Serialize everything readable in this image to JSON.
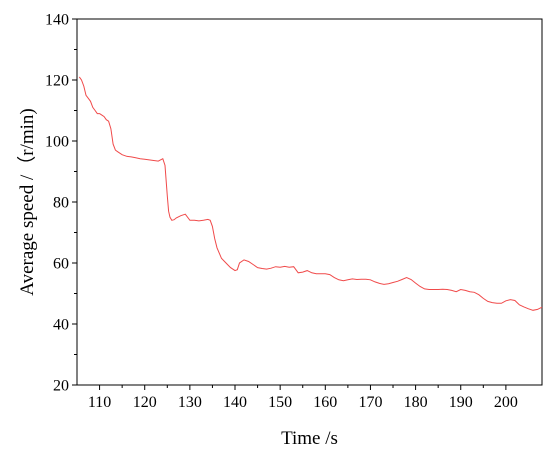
{
  "chart_data": {
    "type": "line",
    "title": "",
    "xlabel": "Time /s",
    "ylabel": "Average speed /（r/min)",
    "xlim": [
      105,
      208
    ],
    "ylim": [
      20,
      140
    ],
    "x_ticks": [
      110,
      120,
      130,
      140,
      150,
      160,
      170,
      180,
      190,
      200
    ],
    "y_ticks": [
      20,
      40,
      60,
      80,
      100,
      120,
      140
    ],
    "grid": false,
    "legend": "none",
    "colors": {
      "line": "#f04a4a",
      "axis": "#000000"
    },
    "series": [
      {
        "x": [
          105.5,
          106,
          106.5,
          107,
          107.5,
          108,
          108.5,
          109,
          109.5,
          110,
          110.5,
          111,
          111.5,
          112,
          112.5,
          113,
          113.5,
          114,
          115,
          116,
          117,
          118,
          119,
          120,
          121,
          122,
          123,
          124,
          124.5,
          125,
          125.3,
          125.6,
          126,
          126.5,
          127,
          128,
          129,
          130,
          131,
          132,
          133,
          134,
          134.5,
          135,
          135.5,
          136,
          137,
          138,
          139,
          140,
          140.5,
          141,
          142,
          143,
          144,
          145,
          146,
          147,
          148,
          149,
          150,
          151,
          152,
          153,
          154,
          155,
          156,
          157,
          158,
          159,
          160,
          161,
          162,
          163,
          164,
          165,
          166,
          167,
          168,
          169,
          170,
          171,
          172,
          173,
          174,
          175,
          176,
          177,
          178,
          179,
          180,
          181,
          182,
          183,
          184,
          185,
          186,
          187,
          188,
          189,
          190,
          191,
          192,
          193,
          194,
          195,
          196,
          197,
          198,
          199,
          200,
          201,
          202,
          203,
          204,
          205,
          206,
          207,
          208
        ],
        "values": [
          121,
          120,
          118,
          115,
          114,
          113,
          111,
          110,
          109,
          109,
          108.5,
          108,
          107,
          106.5,
          104,
          99,
          97,
          96.5,
          95.5,
          95,
          94.8,
          94.5,
          94.2,
          94,
          93.8,
          93.6,
          93.4,
          94.2,
          92,
          82,
          77,
          75,
          74,
          74.2,
          74.8,
          75.5,
          76,
          74,
          74,
          73.8,
          74,
          74.3,
          74,
          72,
          68,
          65,
          61.5,
          60,
          58.5,
          57.5,
          57.8,
          60,
          61,
          60.5,
          59.5,
          58.5,
          58.2,
          58,
          58.3,
          58.8,
          58.6,
          58.9,
          58.6,
          58.8,
          56.8,
          57,
          57.5,
          56.8,
          56.5,
          56.5,
          56.5,
          56.2,
          55.2,
          54.5,
          54.2,
          54.5,
          54.8,
          54.6,
          54.7,
          54.7,
          54.5,
          53.8,
          53.3,
          53,
          53.2,
          53.6,
          54,
          54.6,
          55.2,
          54.6,
          53.4,
          52.3,
          51.5,
          51.3,
          51.3,
          51.3,
          51.4,
          51.3,
          51,
          50.6,
          51.3,
          51,
          50.6,
          50.4,
          49.6,
          48.4,
          47.4,
          47,
          46.8,
          46.8,
          47.6,
          48,
          47.7,
          46.3,
          45.6,
          45,
          44.5,
          44.8,
          45.5
        ]
      }
    ]
  }
}
